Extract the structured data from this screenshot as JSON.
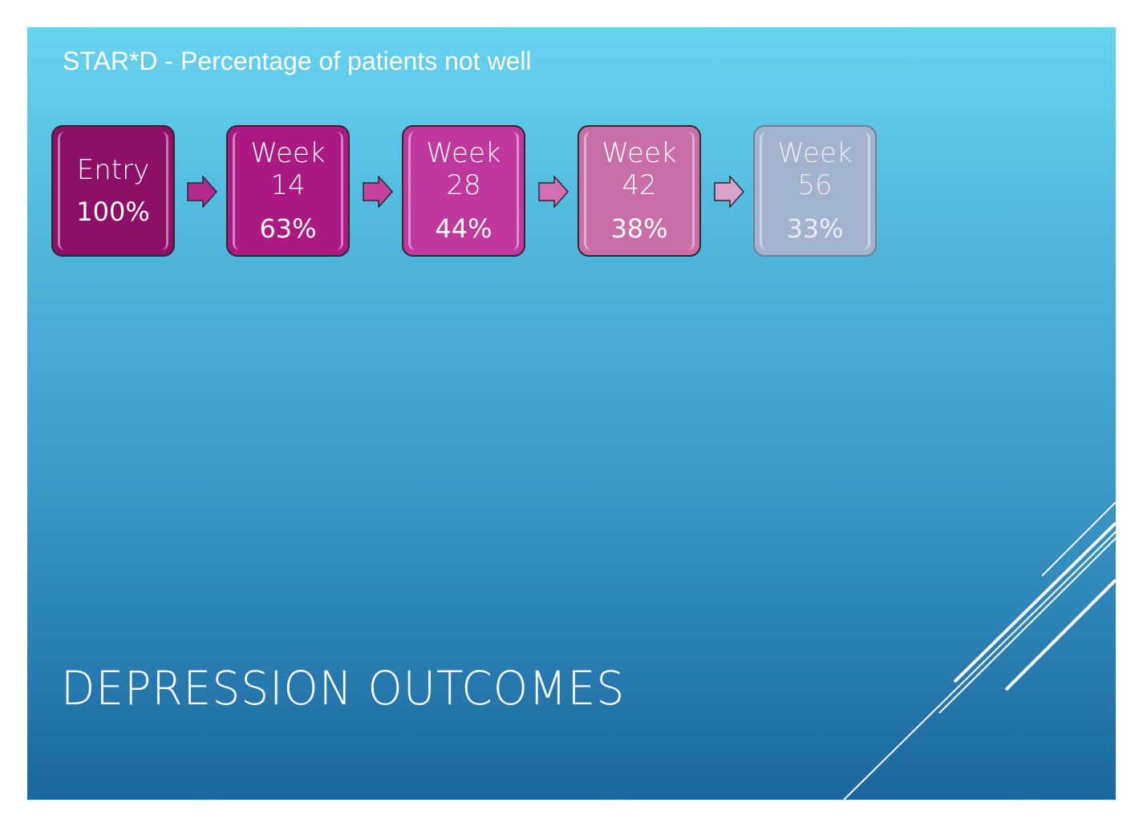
{
  "slide": {
    "subtitle": "STAR*D - Percentage of patients not well",
    "title": "DEPRESSION OUTCOMES"
  },
  "stages": [
    {
      "label_lines": [
        "Entry"
      ],
      "value": "100%",
      "color": "#8e0f68"
    },
    {
      "label_lines": [
        "Week",
        "14"
      ],
      "value": "63%",
      "color": "#aa1a82"
    },
    {
      "label_lines": [
        "Week",
        "28"
      ],
      "value": "44%",
      "color": "#c0389e"
    },
    {
      "label_lines": [
        "Week",
        "42"
      ],
      "value": "38%",
      "color": "#c96ea6"
    },
    {
      "label_lines": [
        "Week",
        "56"
      ],
      "value": "33%",
      "color": "#a3b2cd"
    }
  ],
  "arrow_colors": [
    "#b42a8c",
    "#c444a0",
    "#d370b4",
    "#d9a2c9"
  ]
}
